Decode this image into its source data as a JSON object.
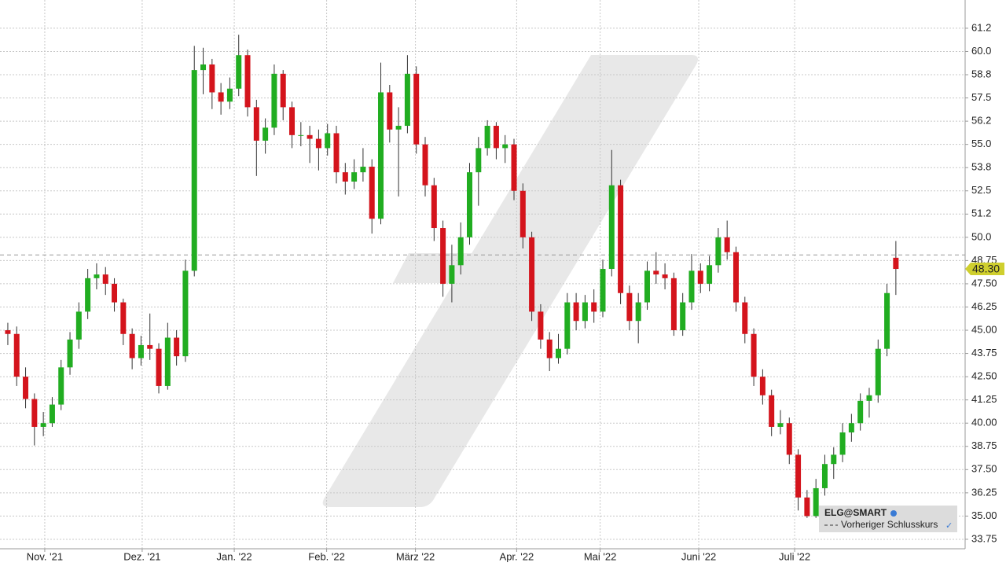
{
  "chart_data": {
    "type": "candlestick",
    "series_name": "ELG@SMART",
    "reference_name": "Vorheriger Schlusskurs",
    "reference_value": 49.05,
    "last_price": {
      "value": 48.3,
      "label": "48.30"
    },
    "up_color": "#21ad21",
    "down_color": "#d4141c",
    "ylim": [
      33.24,
      62.77
    ],
    "xlim": [
      -0.88,
      107.8
    ],
    "grid": true,
    "yticks": [
      {
        "value": 33.75,
        "label": "33.75"
      },
      {
        "value": 35,
        "label": "35.00"
      },
      {
        "value": 36.25,
        "label": "36.25"
      },
      {
        "value": 37.5,
        "label": "37.50"
      },
      {
        "value": 38.75,
        "label": "38.75"
      },
      {
        "value": 40,
        "label": "40.00"
      },
      {
        "value": 41.25,
        "label": "41.25"
      },
      {
        "value": 42.5,
        "label": "42.50"
      },
      {
        "value": 43.75,
        "label": "43.75"
      },
      {
        "value": 45,
        "label": "45.00"
      },
      {
        "value": 46.25,
        "label": "46.25"
      },
      {
        "value": 47.5,
        "label": "47.50"
      },
      {
        "value": 48.75,
        "label": "48.75"
      },
      {
        "value": 50,
        "label": "50.0"
      },
      {
        "value": 51.25,
        "label": "51.2"
      },
      {
        "value": 52.5,
        "label": "52.5"
      },
      {
        "value": 53.75,
        "label": "53.8"
      },
      {
        "value": 55,
        "label": "55.0"
      },
      {
        "value": 56.25,
        "label": "56.2"
      },
      {
        "value": 57.5,
        "label": "57.5"
      },
      {
        "value": 58.75,
        "label": "58.8"
      },
      {
        "value": 60,
        "label": "60.0"
      },
      {
        "value": 61.25,
        "label": "61.2"
      }
    ],
    "xticks": [
      {
        "value": 4.16,
        "label": "Nov. '21"
      },
      {
        "value": 15.13,
        "label": "Dez. '21"
      },
      {
        "value": 25.5,
        "label": "Jan. '22"
      },
      {
        "value": 35.9,
        "label": "Feb. '22"
      },
      {
        "value": 45.9,
        "label": "März '22"
      },
      {
        "value": 57.3,
        "label": "Apr. '22"
      },
      {
        "value": 66.7,
        "label": "Mai '22"
      },
      {
        "value": 77.8,
        "label": "Juni '22"
      },
      {
        "value": 88.6,
        "label": "Juli '22"
      }
    ],
    "ohlc": [
      [
        45.0,
        45.4,
        44.2,
        44.8
      ],
      [
        44.8,
        45.2,
        42.0,
        42.5
      ],
      [
        42.5,
        43.0,
        40.8,
        41.3
      ],
      [
        41.3,
        41.6,
        38.8,
        39.8
      ],
      [
        39.8,
        40.6,
        39.3,
        40.0
      ],
      [
        40.0,
        41.4,
        39.8,
        41.0
      ],
      [
        41.0,
        43.4,
        40.7,
        43.0
      ],
      [
        43.0,
        44.9,
        42.6,
        44.5
      ],
      [
        44.5,
        46.5,
        44.0,
        46.0
      ],
      [
        46.0,
        48.3,
        45.6,
        47.8
      ],
      [
        47.8,
        48.6,
        47.2,
        48.0
      ],
      [
        48.0,
        48.4,
        46.9,
        47.5
      ],
      [
        47.5,
        47.8,
        46.0,
        46.5
      ],
      [
        46.5,
        46.7,
        44.2,
        44.8
      ],
      [
        44.8,
        45.1,
        42.9,
        43.5
      ],
      [
        43.5,
        44.7,
        43.1,
        44.2
      ],
      [
        44.2,
        45.9,
        43.4,
        44.0
      ],
      [
        44.0,
        44.3,
        41.6,
        42.0
      ],
      [
        42.0,
        45.4,
        41.8,
        44.6
      ],
      [
        44.6,
        45.0,
        43.1,
        43.6
      ],
      [
        43.6,
        48.8,
        43.3,
        48.2
      ],
      [
        48.2,
        60.3,
        47.9,
        59.0
      ],
      [
        59.0,
        60.2,
        57.7,
        59.3
      ],
      [
        59.3,
        59.6,
        56.9,
        57.8
      ],
      [
        57.8,
        58.3,
        56.6,
        57.3
      ],
      [
        57.3,
        58.6,
        56.9,
        58.0
      ],
      [
        58.0,
        60.9,
        57.6,
        59.8
      ],
      [
        59.8,
        60.1,
        56.5,
        57.0
      ],
      [
        57.0,
        57.4,
        53.3,
        55.2
      ],
      [
        55.2,
        56.4,
        54.5,
        55.9
      ],
      [
        55.9,
        59.3,
        55.5,
        58.8
      ],
      [
        58.8,
        59.0,
        56.3,
        57.0
      ],
      [
        57.0,
        57.3,
        54.8,
        55.5
      ],
      [
        55.5,
        56.2,
        54.9,
        55.5
      ],
      [
        55.5,
        56.0,
        54.0,
        55.3
      ],
      [
        55.3,
        55.8,
        53.6,
        54.8
      ],
      [
        54.8,
        56.1,
        54.4,
        55.6
      ],
      [
        55.6,
        56.0,
        52.9,
        53.5
      ],
      [
        53.5,
        54.0,
        52.3,
        53.0
      ],
      [
        53.0,
        54.2,
        52.6,
        53.5
      ],
      [
        53.5,
        54.8,
        53.0,
        53.8
      ],
      [
        53.8,
        54.2,
        50.2,
        51.0
      ],
      [
        51.0,
        59.4,
        50.7,
        57.8
      ],
      [
        57.8,
        58.2,
        55.1,
        55.8
      ],
      [
        55.8,
        57.0,
        52.2,
        56.0
      ],
      [
        56.0,
        59.8,
        55.6,
        58.8
      ],
      [
        58.8,
        59.2,
        54.5,
        55.0
      ],
      [
        55.0,
        55.4,
        52.2,
        52.8
      ],
      [
        52.8,
        53.2,
        49.8,
        50.5
      ],
      [
        50.5,
        50.9,
        46.8,
        47.5
      ],
      [
        47.5,
        49.6,
        46.5,
        48.5
      ],
      [
        48.5,
        50.8,
        48.0,
        50.0
      ],
      [
        50.0,
        54.0,
        49.6,
        53.5
      ],
      [
        53.5,
        55.4,
        51.7,
        54.8
      ],
      [
        54.8,
        56.3,
        54.4,
        56.0
      ],
      [
        56.0,
        56.2,
        54.2,
        54.8
      ],
      [
        54.8,
        55.5,
        54.0,
        55.0
      ],
      [
        55.0,
        55.3,
        52.0,
        52.5
      ],
      [
        52.5,
        52.9,
        49.4,
        50.0
      ],
      [
        50.0,
        50.3,
        45.5,
        46.0
      ],
      [
        46.0,
        46.4,
        44.0,
        44.5
      ],
      [
        44.5,
        44.9,
        42.8,
        43.5
      ],
      [
        43.5,
        44.8,
        43.2,
        44.0
      ],
      [
        44.0,
        47.0,
        43.7,
        46.5
      ],
      [
        46.5,
        47.0,
        45.0,
        45.5
      ],
      [
        45.5,
        46.9,
        45.1,
        46.5
      ],
      [
        46.5,
        47.2,
        45.4,
        46.0
      ],
      [
        46.0,
        48.8,
        45.7,
        48.3
      ],
      [
        48.3,
        54.7,
        47.9,
        52.8
      ],
      [
        52.8,
        53.1,
        46.4,
        47.0
      ],
      [
        47.0,
        47.4,
        45.0,
        45.5
      ],
      [
        45.5,
        47.0,
        44.3,
        46.5
      ],
      [
        46.5,
        48.7,
        46.1,
        48.2
      ],
      [
        48.2,
        49.2,
        47.5,
        48.0
      ],
      [
        48.0,
        48.6,
        47.2,
        47.8
      ],
      [
        47.8,
        48.1,
        44.7,
        45.0
      ],
      [
        45.0,
        47.0,
        44.7,
        46.5
      ],
      [
        46.5,
        49.1,
        46.1,
        48.2
      ],
      [
        48.2,
        48.6,
        47.0,
        47.5
      ],
      [
        47.5,
        49.0,
        47.1,
        48.5
      ],
      [
        48.5,
        50.5,
        48.1,
        50.0
      ],
      [
        50.0,
        50.9,
        48.8,
        49.2
      ],
      [
        49.2,
        49.5,
        46.0,
        46.5
      ],
      [
        46.5,
        46.8,
        44.3,
        44.8
      ],
      [
        44.8,
        45.1,
        42.0,
        42.5
      ],
      [
        42.5,
        42.9,
        41.0,
        41.5
      ],
      [
        41.5,
        41.8,
        39.3,
        39.8
      ],
      [
        39.8,
        40.7,
        39.4,
        40.0
      ],
      [
        40.0,
        40.3,
        37.8,
        38.3
      ],
      [
        38.3,
        38.6,
        35.3,
        36.0
      ],
      [
        36.0,
        36.4,
        34.9,
        35.0
      ],
      [
        35.0,
        37.0,
        34.9,
        36.5
      ],
      [
        36.5,
        38.3,
        36.1,
        37.8
      ],
      [
        37.8,
        38.7,
        37.0,
        38.3
      ],
      [
        38.3,
        40.0,
        37.9,
        39.5
      ],
      [
        39.5,
        40.5,
        39.0,
        40.0
      ],
      [
        40.0,
        41.6,
        39.6,
        41.2
      ],
      [
        41.2,
        41.9,
        40.3,
        41.5
      ],
      [
        41.5,
        44.5,
        41.1,
        44.0
      ],
      [
        44.0,
        47.5,
        43.6,
        47.0
      ],
      [
        48.9,
        49.8,
        46.9,
        48.3
      ]
    ]
  }
}
